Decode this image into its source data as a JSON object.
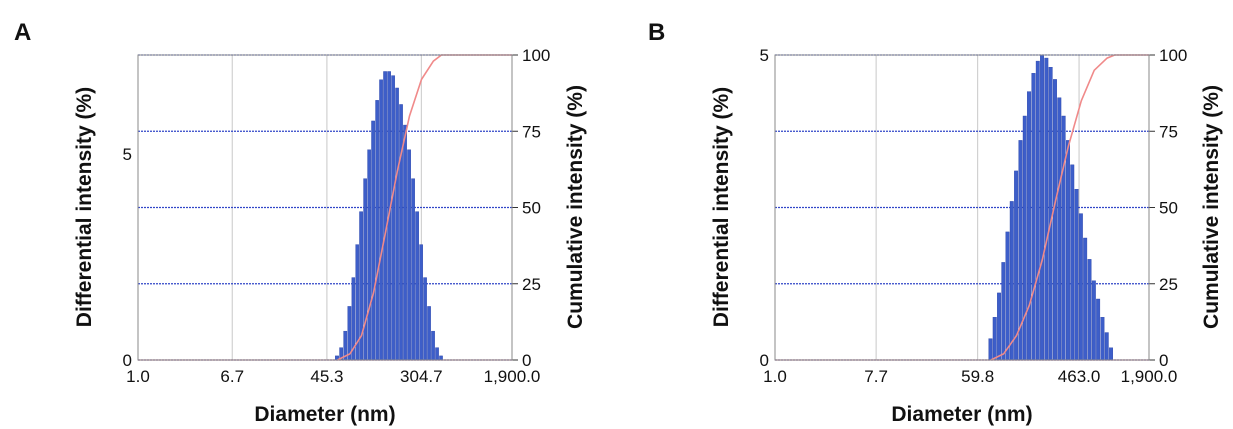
{
  "colors": {
    "bar": "#3d5ec9",
    "bar_edge": "#2a44a8",
    "cumulative_line": "#f08a8a",
    "grid_h": "#3146c8",
    "grid_v": "#c8c8c8",
    "plot_bg": "#ffffff"
  },
  "chart_data": [
    {
      "panel_label": "A",
      "type": "bar",
      "xlabel": "Diameter (nm)",
      "ylabel": "Differential intensity (%)",
      "y2label": "Cumulative intensity (%)",
      "x_scale": "log",
      "xlim": [
        1.0,
        1900.0
      ],
      "ylim": [
        0,
        7.4
      ],
      "y2lim": [
        0,
        100
      ],
      "x_ticks": [
        1.0,
        6.7,
        45.3,
        304.7,
        1900.0
      ],
      "x_tick_labels": [
        "1.0",
        "6.7",
        "45.3",
        "304.7",
        "1,900.0"
      ],
      "y_ticks": [
        0,
        5
      ],
      "y_tick_labels": [
        "0",
        "5"
      ],
      "y2_ticks": [
        0,
        25,
        50,
        75,
        100
      ],
      "y2_tick_labels": [
        "0",
        "25",
        "50",
        "75",
        "100"
      ],
      "grid": true,
      "series": [
        {
          "type": "bar",
          "x": [
            56,
            61,
            66,
            72,
            78,
            84,
            91,
            99,
            107,
            116,
            126,
            136,
            148,
            160,
            174,
            188,
            204,
            221,
            240,
            260,
            282,
            306,
            331,
            359,
            389,
            422,
            457
          ],
          "values": [
            0.1,
            0.3,
            0.7,
            1.3,
            2.0,
            2.8,
            3.6,
            4.4,
            5.1,
            5.8,
            6.3,
            6.8,
            7.0,
            7.0,
            6.9,
            6.6,
            6.2,
            5.7,
            5.1,
            4.4,
            3.6,
            2.8,
            2.0,
            1.3,
            0.7,
            0.3,
            0.1
          ]
        },
        {
          "type": "line",
          "axis": "y2",
          "x": [
            56,
            72,
            91,
            116,
            148,
            188,
            240,
            306,
            389,
            457,
            520,
            1900
          ],
          "values": [
            0,
            2,
            8,
            22,
            42,
            62,
            80,
            92,
            98,
            100,
            100,
            100
          ]
        }
      ]
    },
    {
      "panel_label": "B",
      "type": "bar",
      "xlabel": "Diameter (nm)",
      "ylabel": "Differential intensity (%)",
      "y2label": "Cumulative intensity (%)",
      "x_scale": "log",
      "xlim": [
        1.0,
        1900.0
      ],
      "ylim": [
        0,
        5
      ],
      "y2lim": [
        0,
        100
      ],
      "x_ticks": [
        1.0,
        7.7,
        59.8,
        463.0,
        1900.0
      ],
      "x_tick_labels": [
        "1.0",
        "7.7",
        "59.8",
        "463.0",
        "1,900.0"
      ],
      "y_ticks": [
        0,
        5
      ],
      "y_tick_labels": [
        "0",
        "5"
      ],
      "y2_ticks": [
        0,
        25,
        50,
        75,
        100
      ],
      "y2_tick_labels": [
        "0",
        "25",
        "50",
        "75",
        "100"
      ],
      "grid": true,
      "series": [
        {
          "type": "bar",
          "x": [
            78,
            85,
            93,
            101,
            110,
            120,
            131,
            143,
            156,
            170,
            186,
            203,
            221,
            241,
            263,
            287,
            313,
            342,
            373,
            407,
            444,
            484,
            528,
            576,
            629,
            686,
            748,
            816,
            890
          ],
          "values": [
            0.35,
            0.7,
            1.1,
            1.6,
            2.1,
            2.6,
            3.1,
            3.6,
            4.0,
            4.4,
            4.7,
            4.9,
            5.0,
            4.95,
            4.8,
            4.6,
            4.3,
            4.0,
            3.6,
            3.2,
            2.8,
            2.4,
            2.0,
            1.65,
            1.3,
            1.0,
            0.7,
            0.45,
            0.2
          ]
        },
        {
          "type": "line",
          "axis": "y2",
          "x": [
            78,
            101,
            131,
            170,
            221,
            287,
            373,
            484,
            629,
            816,
            950,
            1900
          ],
          "values": [
            0,
            2,
            8,
            18,
            33,
            52,
            70,
            85,
            95,
            99,
            100,
            100
          ]
        }
      ]
    }
  ]
}
